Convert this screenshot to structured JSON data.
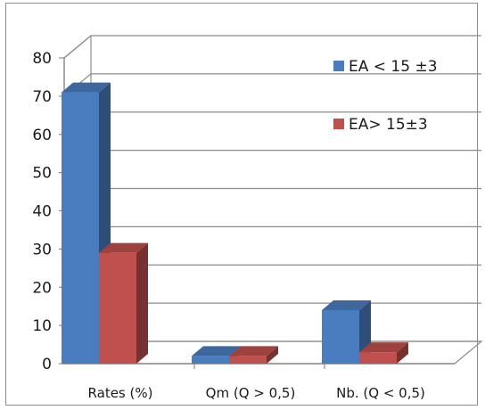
{
  "chart_data": {
    "type": "bar",
    "style": "3d-clustered-column",
    "categories": [
      "Rates (%)",
      "Qm  (Q > 0,5)",
      "Nb. (Q < 0,5)"
    ],
    "series": [
      {
        "name": "EA < 15 ±3",
        "color": "#4a7dc0",
        "values": [
          71,
          2,
          14
        ]
      },
      {
        "name": "EA> 15±3",
        "color": "#c0504d",
        "values": [
          29,
          2,
          3
        ]
      }
    ],
    "yticks": [
      0,
      10,
      20,
      30,
      40,
      50,
      60,
      70,
      80
    ],
    "ylim": [
      0,
      80
    ],
    "grid": true,
    "legend_position": "top-right",
    "title": "",
    "xlabel": "",
    "ylabel": ""
  }
}
